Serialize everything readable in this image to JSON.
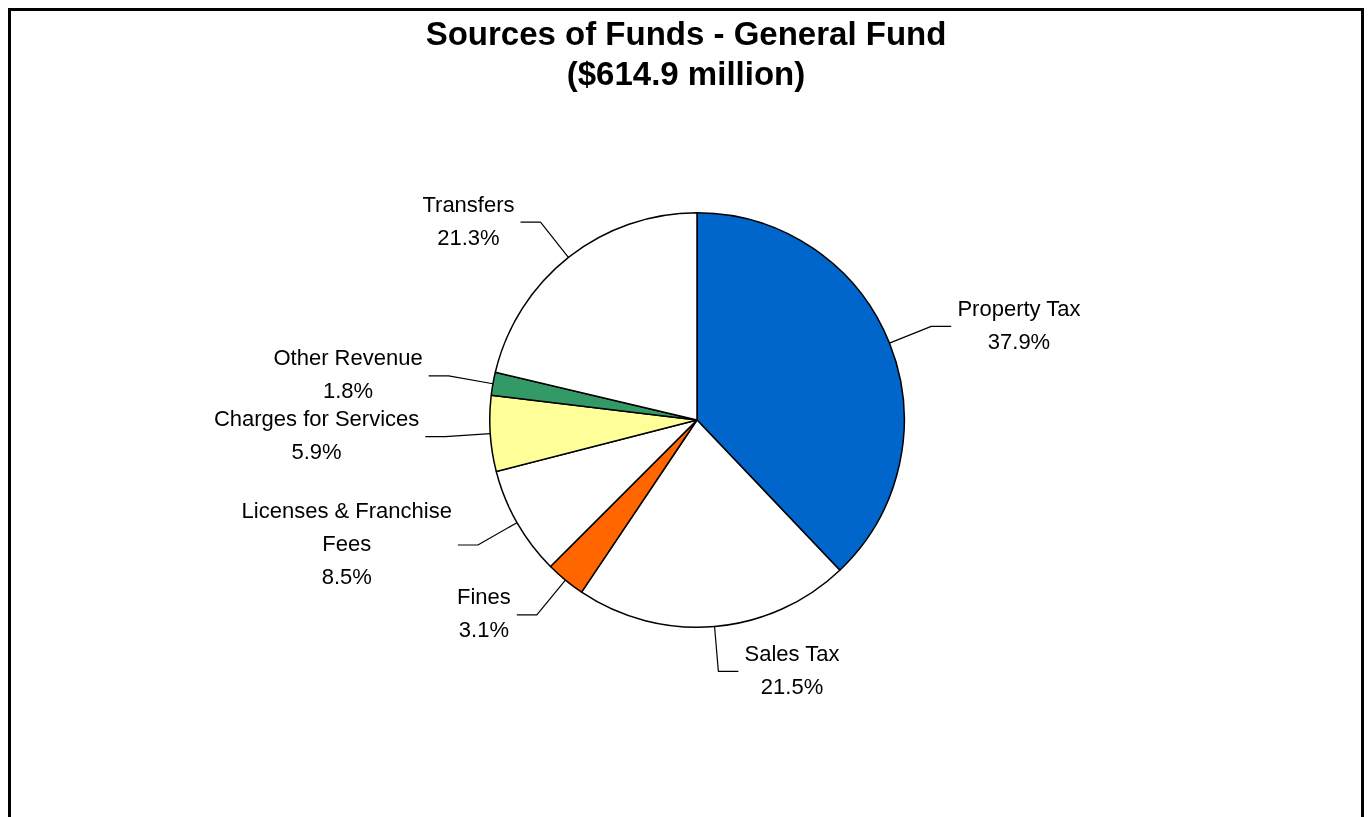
{
  "chart_data": {
    "type": "pie",
    "title": "Sources of Funds - General Fund",
    "subtitle": "($614.9 million)",
    "categories": [
      "Property Tax",
      "Sales Tax",
      "Fines",
      "Licenses & Franchise Fees",
      "Charges for Services",
      "Other Revenue",
      "Transfers"
    ],
    "values": [
      37.9,
      21.5,
      3.1,
      8.5,
      5.9,
      1.8,
      21.3
    ],
    "colors": [
      "#0066cc",
      "#ffffff",
      "#ff6600",
      "#ffffff",
      "#ffff99",
      "#339966",
      "#ffffff"
    ],
    "value_labels": [
      "37.9%",
      "21.5%",
      "3.1%",
      "8.5%",
      "5.9%",
      "1.8%",
      "21.3%"
    ]
  }
}
